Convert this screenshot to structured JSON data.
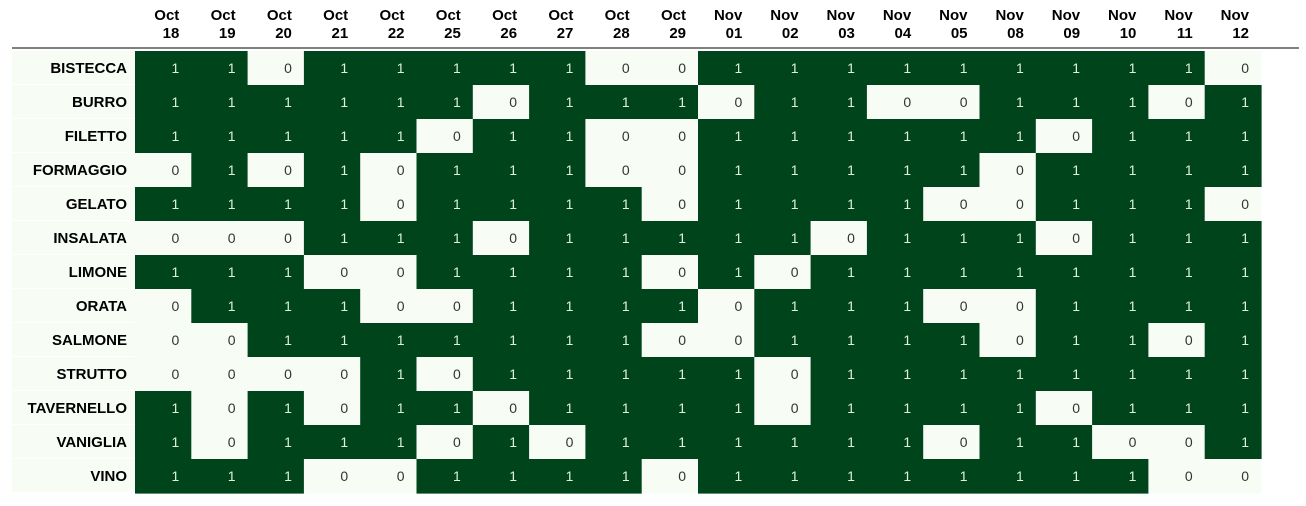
{
  "chart_data": {
    "type": "heatmap",
    "columns": [
      [
        "Oct",
        "18"
      ],
      [
        "Oct",
        "19"
      ],
      [
        "Oct",
        "20"
      ],
      [
        "Oct",
        "21"
      ],
      [
        "Oct",
        "22"
      ],
      [
        "Oct",
        "25"
      ],
      [
        "Oct",
        "26"
      ],
      [
        "Oct",
        "27"
      ],
      [
        "Oct",
        "28"
      ],
      [
        "Oct",
        "29"
      ],
      [
        "Nov",
        "01"
      ],
      [
        "Nov",
        "02"
      ],
      [
        "Nov",
        "03"
      ],
      [
        "Nov",
        "04"
      ],
      [
        "Nov",
        "05"
      ],
      [
        "Nov",
        "08"
      ],
      [
        "Nov",
        "09"
      ],
      [
        "Nov",
        "10"
      ],
      [
        "Nov",
        "11"
      ],
      [
        "Nov",
        "12"
      ]
    ],
    "rows": [
      "BISTECCA",
      "BURRO",
      "FILETTO",
      "FORMAGGIO",
      "GELATO",
      "INSALATA",
      "LIMONE",
      "ORATA",
      "SALMONE",
      "STRUTTO",
      "TAVERNELLO",
      "VANIGLIA",
      "VINO"
    ],
    "values": [
      [
        1,
        1,
        0,
        1,
        1,
        1,
        1,
        1,
        0,
        0,
        1,
        1,
        1,
        1,
        1,
        1,
        1,
        1,
        1,
        0
      ],
      [
        1,
        1,
        1,
        1,
        1,
        1,
        0,
        1,
        1,
        1,
        0,
        1,
        1,
        0,
        0,
        1,
        1,
        1,
        0,
        1
      ],
      [
        1,
        1,
        1,
        1,
        1,
        0,
        1,
        1,
        0,
        0,
        1,
        1,
        1,
        1,
        1,
        1,
        0,
        1,
        1,
        1
      ],
      [
        0,
        1,
        0,
        1,
        0,
        1,
        1,
        1,
        0,
        0,
        1,
        1,
        1,
        1,
        1,
        0,
        1,
        1,
        1,
        1
      ],
      [
        1,
        1,
        1,
        1,
        0,
        1,
        1,
        1,
        1,
        0,
        1,
        1,
        1,
        1,
        0,
        0,
        1,
        1,
        1,
        0
      ],
      [
        0,
        0,
        0,
        1,
        1,
        1,
        0,
        1,
        1,
        1,
        1,
        1,
        0,
        1,
        1,
        1,
        0,
        1,
        1,
        1
      ],
      [
        1,
        1,
        1,
        0,
        0,
        1,
        1,
        1,
        1,
        0,
        1,
        0,
        1,
        1,
        1,
        1,
        1,
        1,
        1,
        1
      ],
      [
        0,
        1,
        1,
        1,
        0,
        0,
        1,
        1,
        1,
        1,
        0,
        1,
        1,
        1,
        0,
        0,
        1,
        1,
        1,
        1
      ],
      [
        0,
        0,
        1,
        1,
        1,
        1,
        1,
        1,
        1,
        0,
        0,
        1,
        1,
        1,
        1,
        0,
        1,
        1,
        0,
        1
      ],
      [
        0,
        0,
        0,
        0,
        1,
        0,
        1,
        1,
        1,
        1,
        1,
        0,
        1,
        1,
        1,
        1,
        1,
        1,
        1,
        1
      ],
      [
        1,
        0,
        1,
        0,
        1,
        1,
        0,
        1,
        1,
        1,
        1,
        0,
        1,
        1,
        1,
        1,
        0,
        1,
        1,
        1
      ],
      [
        1,
        0,
        1,
        1,
        1,
        0,
        1,
        0,
        1,
        1,
        1,
        1,
        1,
        1,
        0,
        1,
        1,
        0,
        0,
        1
      ],
      [
        1,
        1,
        1,
        0,
        0,
        1,
        1,
        1,
        1,
        0,
        1,
        1,
        1,
        1,
        1,
        1,
        1,
        1,
        0,
        0
      ]
    ],
    "colors": {
      "one": "#00441b",
      "zero": "#f7fcf5",
      "one_text": "#dfeee0",
      "zero_text": "#333333",
      "header_rule": "#000000"
    },
    "grid": false,
    "legend": false
  }
}
